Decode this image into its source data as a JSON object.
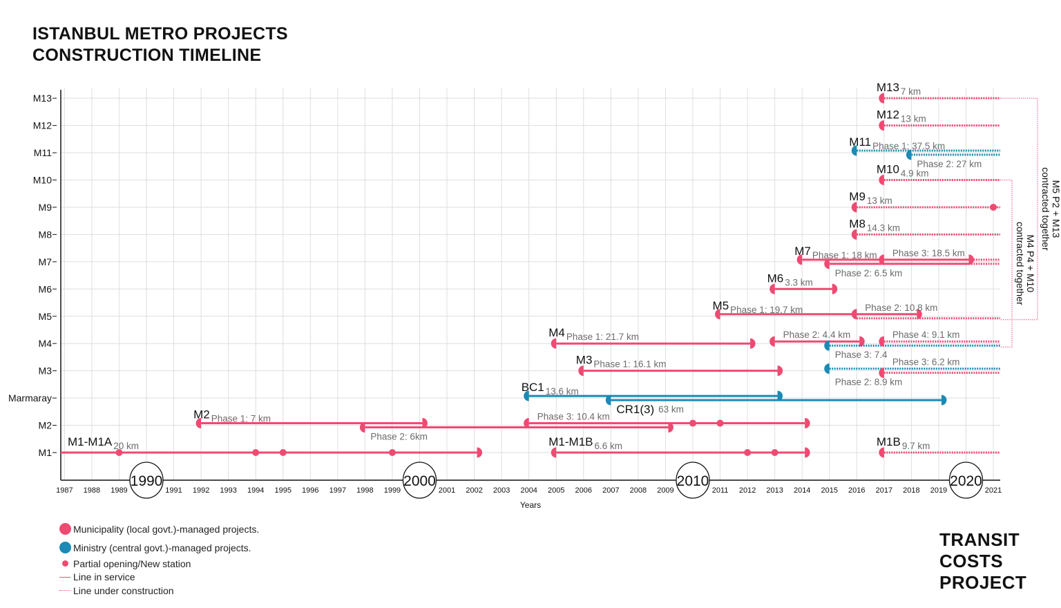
{
  "title": {
    "line1": "ISTANBUL METRO PROJECTS",
    "line2": "CONSTRUCTION TIMELINE"
  },
  "logo": {
    "line1": "TRANSIT",
    "line2": "COSTS",
    "line3": "PROJECT"
  },
  "colors": {
    "municipality": "#EE4A72",
    "ministry": "#1B8AB4",
    "grid": "#dedede",
    "label": "#6b6b6b"
  },
  "legend": [
    {
      "symbol": "large-dot",
      "color": "#EE4A72",
      "text": "Municipality (local govt.)-managed projects."
    },
    {
      "symbol": "large-dot",
      "color": "#1B8AB4",
      "text": "Ministry (central govt.)-managed projects."
    },
    {
      "symbol": "small-dot",
      "color": "#EE4A72",
      "text": "Partial opening/New station"
    },
    {
      "symbol": "solid-line",
      "color": "#EE4A72",
      "text": "Line in service"
    },
    {
      "symbol": "dotted-line",
      "color": "#EE4A72",
      "text": "Line under construction"
    }
  ],
  "chart_data": {
    "type": "timeline",
    "xlabel": "Years",
    "xlim": [
      1987,
      2021
    ],
    "xticks": [
      1987,
      1988,
      1989,
      1990,
      1991,
      1992,
      1993,
      1994,
      1995,
      1996,
      1997,
      1998,
      1999,
      2000,
      2001,
      2002,
      2003,
      2004,
      2005,
      2006,
      2007,
      2008,
      2009,
      2010,
      2011,
      2012,
      2013,
      2014,
      2015,
      2016,
      2017,
      2018,
      2019,
      2020,
      2021
    ],
    "highlighted_ticks": [
      1990,
      2000,
      2010,
      2020
    ],
    "grid": true,
    "rows": [
      {
        "label": "M1",
        "segments": [
          {
            "name": "M1-M1A",
            "label": "20 km",
            "agency": "municipality",
            "status": "in-service",
            "start": null,
            "end": 2002.1,
            "track": "single",
            "start_cap": false,
            "end_cap": true,
            "stations": [
              1989,
              1994,
              1995,
              1999
            ],
            "label_pos": "above"
          },
          {
            "name": "M1-M1B",
            "label": "6.6 km",
            "agency": "municipality",
            "status": "in-service",
            "start": 2005,
            "end": 2014.1,
            "track": "single",
            "start_cap": true,
            "end_cap": true,
            "stations": [
              2012,
              2013
            ],
            "label_pos": "above"
          },
          {
            "name": "M1B",
            "label": "9.7 km",
            "agency": "municipality",
            "status": "under-construction",
            "start": 2017,
            "end": null,
            "track": "single",
            "start_cap": true,
            "end_cap": false,
            "stations": [],
            "label_pos": "above"
          }
        ]
      },
      {
        "label": "M2",
        "segments": [
          {
            "name": "M2",
            "label": "Phase 1: 7 km",
            "agency": "municipality",
            "status": "in-service",
            "start": 1992,
            "end": 2000.1,
            "track": "upper",
            "start_cap": true,
            "end_cap": true,
            "stations": [],
            "label_pos": "above"
          },
          {
            "name": "",
            "label": "Phase 2: 6km",
            "agency": "municipality",
            "status": "in-service",
            "start": 1998,
            "end": 2009.1,
            "track": "lower",
            "start_cap": true,
            "end_cap": true,
            "stations": [],
            "label_pos": "below"
          },
          {
            "name": "",
            "label": "Phase 3: 10.4 km",
            "agency": "municipality",
            "status": "in-service",
            "start": 2004,
            "end": 2014.1,
            "track": "upper",
            "start_cap": true,
            "end_cap": true,
            "stations": [
              2010,
              2011
            ],
            "label_pos": "above"
          }
        ]
      },
      {
        "label": "Marmaray",
        "segments": [
          {
            "name": "BC1",
            "label": "13.6 km",
            "agency": "ministry",
            "status": "in-service",
            "start": 2004,
            "end": 2013.1,
            "track": "upper",
            "start_cap": true,
            "end_cap": true,
            "stations": [],
            "label_pos": "above"
          },
          {
            "name": "CR1(3)",
            "label": "63 km",
            "agency": "ministry",
            "status": "in-service",
            "start": 2007,
            "end": 2019.1,
            "track": "lower",
            "start_cap": true,
            "end_cap": true,
            "stations": [],
            "label_pos": "below"
          }
        ]
      },
      {
        "label": "M3",
        "segments": [
          {
            "name": "M3",
            "label": "Phase 1: 16.1 km",
            "agency": "municipality",
            "status": "in-service",
            "start": 2006,
            "end": 2013.1,
            "track": "single",
            "start_cap": true,
            "end_cap": true,
            "stations": [],
            "label_pos": "above"
          },
          {
            "name": "",
            "label": "Phase 2: 8.9 km",
            "agency": "ministry",
            "status": "under-construction",
            "start": 2015,
            "end": null,
            "track": "upper",
            "start_cap": true,
            "end_cap": false,
            "stations": [],
            "label_pos": "below"
          },
          {
            "name": "",
            "label": "Phase 3: 6.2 km",
            "agency": "municipality",
            "status": "under-construction",
            "start": 2017,
            "end": null,
            "track": "lower",
            "start_cap": true,
            "end_cap": false,
            "stations": [],
            "label_pos": "above"
          }
        ]
      },
      {
        "label": "M4",
        "segments": [
          {
            "name": "M4",
            "label": "Phase 1: 21.7 km",
            "agency": "municipality",
            "status": "in-service",
            "start": 2005,
            "end": 2012.1,
            "track": "single",
            "start_cap": true,
            "end_cap": true,
            "stations": [],
            "label_pos": "above"
          },
          {
            "name": "",
            "label": "Phase 2: 4.4 km",
            "agency": "municipality",
            "status": "in-service",
            "start": 2013,
            "end": 2016.1,
            "track": "upper",
            "start_cap": true,
            "end_cap": true,
            "stations": [],
            "label_pos": "above"
          },
          {
            "name": "",
            "label": "Phase 3: 7.4",
            "agency": "ministry",
            "status": "under-construction",
            "start": 2015,
            "end": null,
            "track": "lower",
            "start_cap": true,
            "end_cap": false,
            "stations": [],
            "label_pos": "below"
          },
          {
            "name": "",
            "label": "Phase 4: 9.1  km",
            "agency": "municipality",
            "status": "under-construction",
            "start": 2017,
            "end": null,
            "track": "upper",
            "start_cap": true,
            "end_cap": false,
            "stations": [],
            "label_pos": "above"
          }
        ]
      },
      {
        "label": "M5",
        "segments": [
          {
            "name": "M5",
            "label": "Phase 1: 19.7 km",
            "agency": "municipality",
            "status": "in-service",
            "start": 2011,
            "end": 2016,
            "track": "upper",
            "start_cap": true,
            "end_cap": false,
            "stations": [],
            "label_pos": "above"
          },
          {
            "name": "",
            "label": "Phase 2: 10.8 km",
            "agency": "municipality",
            "status": "in-service",
            "start": 2016,
            "end": 2018.2,
            "track": "upper",
            "start_cap": true,
            "end_cap": true,
            "stations": [],
            "label_pos": "above"
          },
          {
            "name": "",
            "label": "",
            "agency": "municipality",
            "status": "under-construction",
            "start": 2016,
            "end": null,
            "track": "lower",
            "start_cap": false,
            "end_cap": false,
            "stations": [],
            "label_pos": "above"
          }
        ]
      },
      {
        "label": "M6",
        "segments": [
          {
            "name": "M6",
            "label": "3.3 km",
            "agency": "municipality",
            "status": "in-service",
            "start": 2013,
            "end": 2015.1,
            "track": "single",
            "start_cap": true,
            "end_cap": true,
            "stations": [],
            "label_pos": "above"
          }
        ]
      },
      {
        "label": "M7",
        "segments": [
          {
            "name": "M7",
            "label": "Phase 1: 18 km",
            "agency": "municipality",
            "status": "in-service",
            "start": 2014,
            "end": 2017,
            "track": "upper",
            "start_cap": true,
            "end_cap": false,
            "stations": [],
            "label_pos": "above"
          },
          {
            "name": "",
            "label": "Phase 3: 18.5 km",
            "agency": "municipality",
            "status": "in-service",
            "start": 2017,
            "end": 2020.1,
            "track": "upper",
            "start_cap": true,
            "end_cap": true,
            "stations": [],
            "label_pos": "above"
          },
          {
            "name": "",
            "label": "Phase 2: 6.5 km",
            "agency": "municipality",
            "status": "in-service",
            "start": 2015,
            "end": 2020.1,
            "track": "lower",
            "start_cap": true,
            "end_cap": false,
            "stations": [],
            "label_pos": "below"
          },
          {
            "name": "",
            "label": "",
            "agency": "municipality",
            "status": "under-construction",
            "start": 2020.1,
            "end": null,
            "track": "upper",
            "start_cap": false,
            "end_cap": false,
            "stations": [],
            "label_pos": "above"
          },
          {
            "name": "",
            "label": "",
            "agency": "municipality",
            "status": "under-construction",
            "start": 2020.1,
            "end": null,
            "track": "lower",
            "start_cap": false,
            "end_cap": false,
            "stations": [],
            "label_pos": "above"
          }
        ]
      },
      {
        "label": "M8",
        "segments": [
          {
            "name": "M8",
            "label": "14.3 km",
            "agency": "municipality",
            "status": "under-construction",
            "start": 2016,
            "end": null,
            "track": "single",
            "start_cap": true,
            "end_cap": false,
            "stations": [],
            "label_pos": "above"
          }
        ]
      },
      {
        "label": "M9",
        "segments": [
          {
            "name": "M9",
            "label": "13 km",
            "agency": "municipality",
            "status": "under-construction",
            "start": 2016,
            "end": null,
            "track": "single",
            "start_cap": true,
            "end_cap": false,
            "stations": [
              2021
            ],
            "label_pos": "above"
          }
        ]
      },
      {
        "label": "M10",
        "segments": [
          {
            "name": "M10",
            "label": "4.9 km",
            "agency": "municipality",
            "status": "under-construction",
            "start": 2017,
            "end": null,
            "track": "single",
            "start_cap": true,
            "end_cap": false,
            "stations": [],
            "label_pos": "above"
          }
        ]
      },
      {
        "label": "M11",
        "segments": [
          {
            "name": "M11",
            "label": "Phase 1: 37.5 km",
            "agency": "ministry",
            "status": "under-construction",
            "start": 2016,
            "end": null,
            "track": "upper",
            "start_cap": true,
            "end_cap": false,
            "stations": [],
            "label_pos": "above"
          },
          {
            "name": "",
            "label": "Phase 2: 27 km",
            "agency": "ministry",
            "status": "under-construction",
            "start": 2018,
            "end": null,
            "track": "lower",
            "start_cap": true,
            "end_cap": false,
            "stations": [],
            "label_pos": "below"
          }
        ]
      },
      {
        "label": "M12",
        "segments": [
          {
            "name": "M12",
            "label": "13 km",
            "agency": "municipality",
            "status": "under-construction",
            "start": 2017,
            "end": null,
            "track": "single",
            "start_cap": true,
            "end_cap": false,
            "stations": [],
            "label_pos": "above"
          }
        ]
      },
      {
        "label": "M13",
        "segments": [
          {
            "name": "M13",
            "label": "7 km",
            "agency": "municipality",
            "status": "under-construction",
            "start": 2017,
            "end": null,
            "track": "single",
            "start_cap": true,
            "end_cap": false,
            "stations": [],
            "label_pos": "above"
          }
        ]
      }
    ],
    "annotations": [
      {
        "lines": [
          "M5 P2 + M13",
          "contracted together"
        ],
        "from_row": "M13",
        "to_row": "M5"
      },
      {
        "lines": [
          "M4 P4 + M10",
          "contracted together"
        ],
        "from_row": "M10",
        "to_row": "M4"
      }
    ]
  }
}
